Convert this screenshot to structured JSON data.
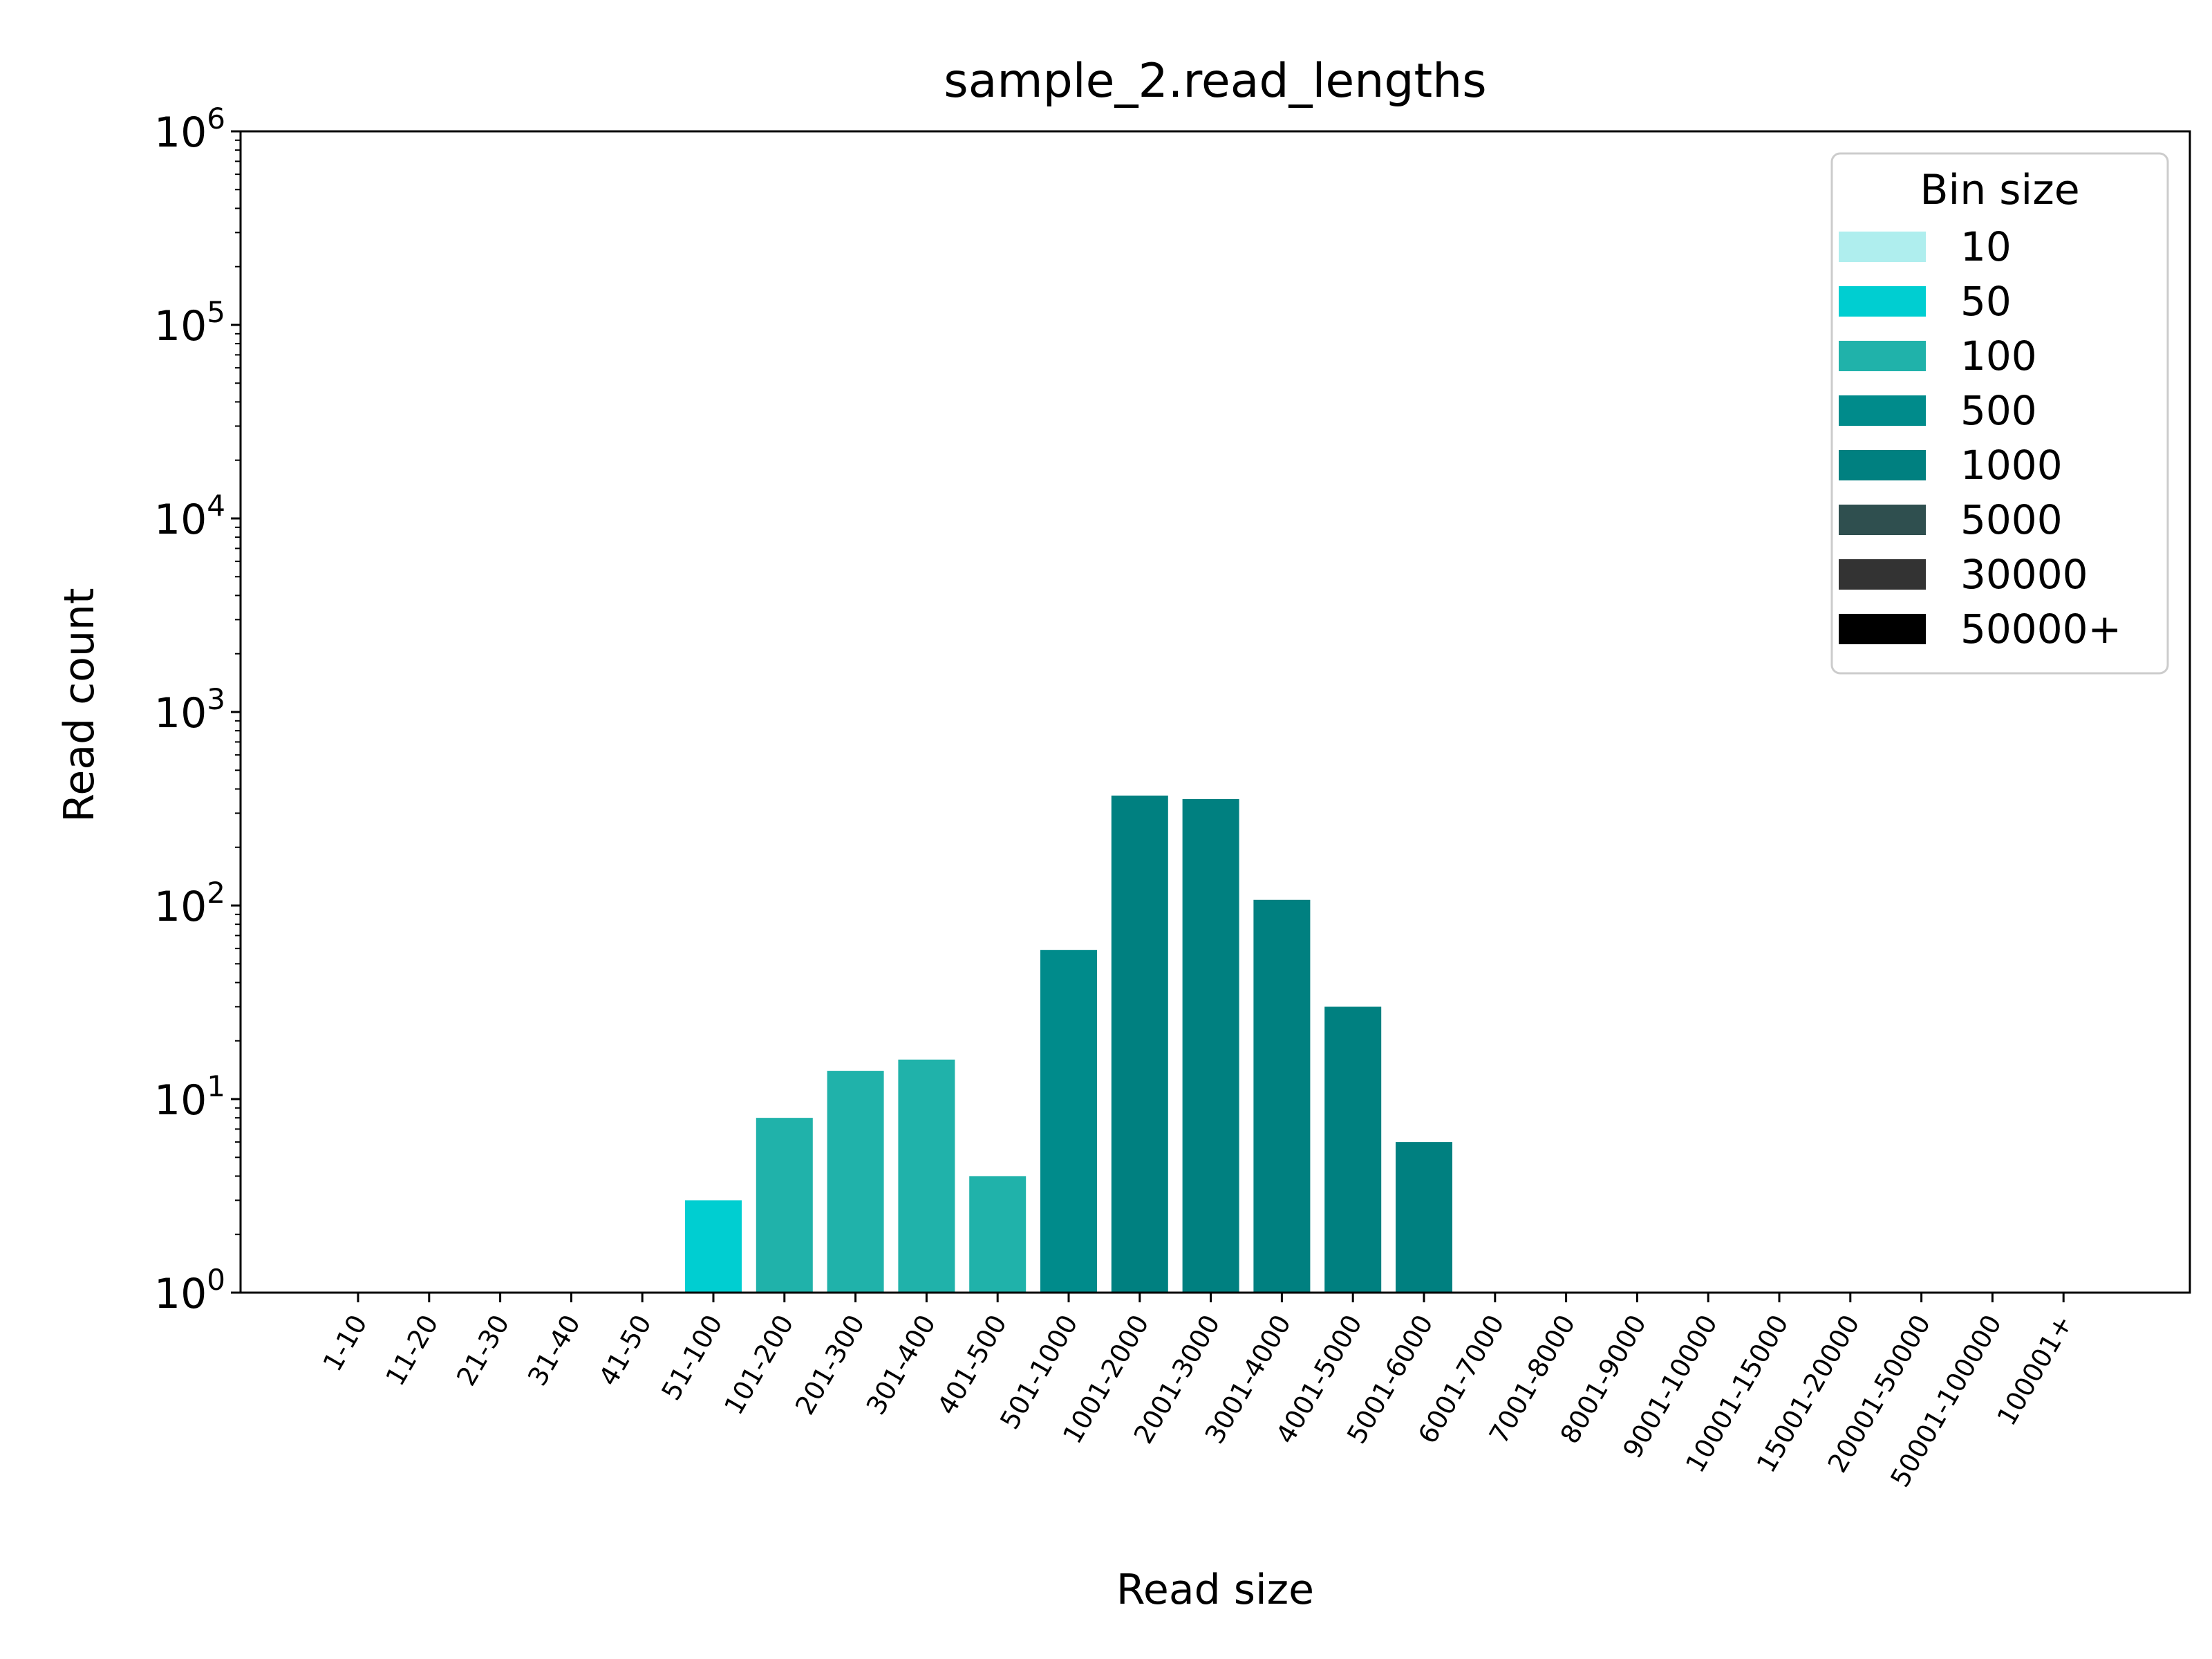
{
  "chart_data": {
    "type": "bar",
    "title": "sample_2.read_lengths",
    "xlabel": "Read size",
    "ylabel": "Read count",
    "yscale": "log",
    "ylim": [
      1,
      1000000
    ],
    "yticks": [
      {
        "base": "10",
        "exp": "0"
      },
      {
        "base": "10",
        "exp": "1"
      },
      {
        "base": "10",
        "exp": "2"
      },
      {
        "base": "10",
        "exp": "3"
      },
      {
        "base": "10",
        "exp": "4"
      },
      {
        "base": "10",
        "exp": "5"
      },
      {
        "base": "10",
        "exp": "6"
      }
    ],
    "categories": [
      "1-10",
      "11-20",
      "21-30",
      "31-40",
      "41-50",
      "51-100",
      "101-200",
      "201-300",
      "301-400",
      "401-500",
      "501-1000",
      "1001-2000",
      "2001-3000",
      "3001-4000",
      "4001-5000",
      "5001-6000",
      "6001-7000",
      "7001-8000",
      "8001-9000",
      "9001-10000",
      "10001-15000",
      "15001-20000",
      "20001-50000",
      "50001-100000",
      "100001+"
    ],
    "values": [
      0,
      0,
      0,
      0,
      0,
      3,
      8,
      14,
      16,
      4,
      59,
      370,
      355,
      107,
      30,
      6,
      0,
      0,
      0,
      0,
      0,
      0,
      0,
      0,
      0
    ],
    "bin_sizes": [
      "10",
      "10",
      "10",
      "10",
      "10",
      "50",
      "100",
      "100",
      "100",
      "100",
      "500",
      "1000",
      "1000",
      "1000",
      "1000",
      "1000",
      "1000",
      "1000",
      "1000",
      "1000",
      "5000",
      "5000",
      "30000",
      "50000+",
      "50000+"
    ],
    "legend": {
      "title": "Bin size",
      "position": "top-right",
      "entries": [
        {
          "label": "10",
          "color": "#afeeee"
        },
        {
          "label": "50",
          "color": "#00ced1"
        },
        {
          "label": "100",
          "color": "#20b2aa"
        },
        {
          "label": "500",
          "color": "#008b8b"
        },
        {
          "label": "1000",
          "color": "#008080"
        },
        {
          "label": "5000",
          "color": "#2f4f4f"
        },
        {
          "label": "30000",
          "color": "#333333"
        },
        {
          "label": "50000+",
          "color": "#000000"
        }
      ]
    },
    "grid": false
  }
}
